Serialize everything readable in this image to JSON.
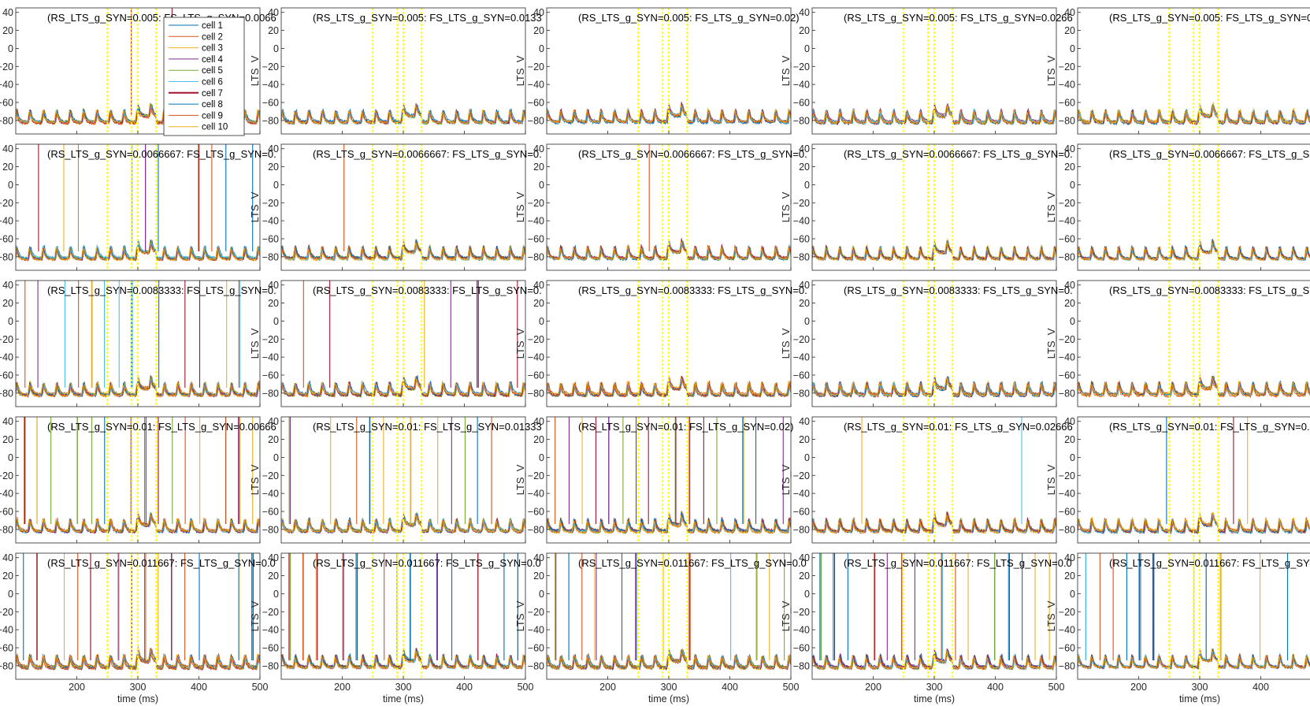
{
  "figure": {
    "rows": 5,
    "cols": 5,
    "ylabel": "LTS_V",
    "xlabel": "time (ms)"
  },
  "colors": {
    "cell_colors": [
      "#0072BD",
      "#D95319",
      "#EDB120",
      "#7E2F8E",
      "#77AC30",
      "#4DBEEE",
      "#A2142F",
      "#0072BD",
      "#D95319",
      "#EDB120"
    ],
    "marker": "#FFFF00",
    "axes": "#262626"
  },
  "chart_data": {
    "type": "line",
    "xlim": [
      100,
      500
    ],
    "ylim": [
      -95,
      45
    ],
    "xticks": [
      200,
      300,
      400,
      500
    ],
    "yticks": [
      40,
      20,
      0,
      -20,
      -40,
      -60,
      -80
    ],
    "marker_lines_x": [
      250,
      290,
      300,
      330
    ],
    "legend": {
      "placement": "top-right of first panel",
      "entries": [
        "cell 1",
        "cell 2",
        "cell 3",
        "cell 4",
        "cell 5",
        "cell 6",
        "cell 7",
        "cell 8",
        "cell 9",
        "cell 10"
      ]
    },
    "row_labels": [
      "0.005",
      "0.0066667",
      "0.0083333",
      "0.01",
      "0.011667"
    ],
    "panel_titles": [
      [
        "(RS_LTS_g_SYN=0.005: FS_LTS_g_SYN=0.0066",
        "(RS_LTS_g_SYN=0.005: FS_LTS_g_SYN=0.0133",
        "(RS_LTS_g_SYN=0.005: FS_LTS_g_SYN=0.02)",
        "(RS_LTS_g_SYN=0.005: FS_LTS_g_SYN=0.0266",
        "(RS_LTS_g_SYN=0.005: FS_LTS_g_SYN=0."
      ],
      [
        "(RS_LTS_g_SYN=0.0066667: FS_LTS_g_SYN=0.",
        "(RS_LTS_g_SYN=0.0066667: FS_LTS_g_SYN=0.",
        "(RS_LTS_g_SYN=0.0066667: FS_LTS_g_SYN=0.",
        "(RS_LTS_g_SYN=0.0066667: FS_LTS_g_SYN=0.",
        "(RS_LTS_g_SYN=0.0066667: FS_LTS_g_SY"
      ],
      [
        "(RS_LTS_g_SYN=0.0083333: FS_LTS_g_SYN=0.",
        "(RS_LTS_g_SYN=0.0083333: FS_LTS_g_SYN=0.",
        "(RS_LTS_g_SYN=0.0083333: FS_LTS_g_SYN=0.",
        "(RS_LTS_g_SYN=0.0083333: FS_LTS_g_SYN=0.",
        "(RS_LTS_g_SYN=0.0083333: FS_LTS_g_SY"
      ],
      [
        "(RS_LTS_g_SYN=0.01: FS_LTS_g_SYN=0.00666",
        "(RS_LTS_g_SYN=0.01: FS_LTS_g_SYN=0.01333",
        "(RS_LTS_g_SYN=0.01: FS_LTS_g_SYN=0.02)",
        "(RS_LTS_g_SYN=0.01: FS_LTS_g_SYN=0.02666",
        "(RS_LTS_g_SYN=0.01: FS_LTS_g_SYN=0.0"
      ],
      [
        "(RS_LTS_g_SYN=0.011667: FS_LTS_g_SYN=0.0",
        "(RS_LTS_g_SYN=0.011667: FS_LTS_g_SYN=0.0",
        "(RS_LTS_g_SYN=0.011667: FS_LTS_g_SYN=0.0",
        "(RS_LTS_g_SYN=0.011667: FS_LTS_g_SYN=0.0",
        "(RS_LTS_g_SYN=0.011667: FS_LTS_g_SY"
      ]
    ],
    "baseline_mV": -82,
    "burst_period_ms": 22,
    "spike_peak_mV": 45,
    "spike_rate_approx_hz": [
      [
        2,
        0,
        0,
        0,
        0
      ],
      [
        22,
        2,
        1,
        0,
        0
      ],
      [
        40,
        10,
        2,
        0,
        0
      ],
      [
        40,
        35,
        22,
        5,
        2
      ],
      [
        42,
        40,
        35,
        30,
        20
      ]
    ]
  }
}
